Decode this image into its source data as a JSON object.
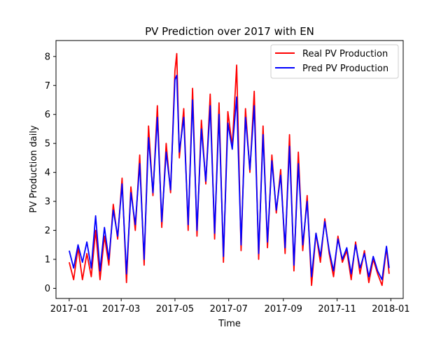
{
  "chart_data": {
    "type": "line",
    "title": "PV Prediction over 2017 with EN",
    "xlabel": "Time",
    "ylabel": "PV Production daily",
    "x_ticks": [
      "2017-01",
      "2017-03",
      "2017-05",
      "2017-07",
      "2017-09",
      "2017-11",
      "2018-01"
    ],
    "x_tick_days": [
      0,
      59,
      120,
      181,
      243,
      304,
      365
    ],
    "y_ticks": [
      0,
      1,
      2,
      3,
      4,
      5,
      6,
      7,
      8
    ],
    "xlim": [
      "2016-12-17",
      "2018-01-15"
    ],
    "ylim": [
      -0.35,
      8.55
    ],
    "legend_position": "upper right",
    "grid": false,
    "series": [
      {
        "name": "Real PV Production",
        "color": "#ff0000",
        "x": [
          "2017-01-01",
          "2017-01-06",
          "2017-01-11",
          "2017-01-16",
          "2017-01-21",
          "2017-01-26",
          "2017-01-31",
          "2017-02-05",
          "2017-02-10",
          "2017-02-15",
          "2017-02-20",
          "2017-02-25",
          "2017-03-02",
          "2017-03-07",
          "2017-03-12",
          "2017-03-17",
          "2017-03-22",
          "2017-03-27",
          "2017-04-01",
          "2017-04-06",
          "2017-04-11",
          "2017-04-16",
          "2017-04-21",
          "2017-04-26",
          "2017-05-01",
          "2017-05-03",
          "2017-05-06",
          "2017-05-11",
          "2017-05-16",
          "2017-05-21",
          "2017-05-26",
          "2017-05-31",
          "2017-06-05",
          "2017-06-10",
          "2017-06-15",
          "2017-06-20",
          "2017-06-25",
          "2017-06-30",
          "2017-07-05",
          "2017-07-10",
          "2017-07-15",
          "2017-07-20",
          "2017-07-25",
          "2017-07-30",
          "2017-08-04",
          "2017-08-09",
          "2017-08-14",
          "2017-08-19",
          "2017-08-24",
          "2017-08-29",
          "2017-09-03",
          "2017-09-08",
          "2017-09-13",
          "2017-09-18",
          "2017-09-23",
          "2017-09-28",
          "2017-10-03",
          "2017-10-08",
          "2017-10-13",
          "2017-10-18",
          "2017-10-23",
          "2017-10-28",
          "2017-11-02",
          "2017-11-07",
          "2017-11-12",
          "2017-11-17",
          "2017-11-22",
          "2017-11-27",
          "2017-12-02",
          "2017-12-07",
          "2017-12-12",
          "2017-12-17",
          "2017-12-22",
          "2017-12-27",
          "2017-12-30"
        ],
        "values": [
          0.9,
          0.3,
          1.4,
          0.3,
          1.2,
          0.4,
          2.0,
          0.3,
          1.8,
          0.8,
          2.9,
          1.7,
          3.8,
          0.2,
          3.5,
          2.0,
          4.6,
          0.8,
          5.6,
          3.2,
          6.3,
          2.1,
          5.0,
          3.3,
          7.5,
          8.1,
          4.5,
          6.2,
          2.0,
          6.9,
          1.8,
          5.8,
          3.6,
          6.7,
          1.7,
          6.4,
          0.9,
          6.1,
          4.9,
          7.7,
          1.3,
          6.2,
          4.0,
          6.8,
          1.0,
          5.6,
          1.4,
          4.6,
          2.6,
          4.1,
          1.2,
          5.3,
          0.6,
          4.7,
          1.3,
          3.2,
          0.1,
          1.9,
          0.9,
          2.4,
          1.2,
          0.4,
          1.8,
          0.9,
          1.3,
          0.3,
          1.6,
          0.5,
          1.3,
          0.2,
          1.0,
          0.5,
          0.1,
          1.4,
          0.5
        ]
      },
      {
        "name": "Pred PV Production",
        "color": "#0000ff",
        "x": [
          "2017-01-01",
          "2017-01-06",
          "2017-01-11",
          "2017-01-16",
          "2017-01-21",
          "2017-01-26",
          "2017-01-31",
          "2017-02-05",
          "2017-02-10",
          "2017-02-15",
          "2017-02-20",
          "2017-02-25",
          "2017-03-02",
          "2017-03-07",
          "2017-03-12",
          "2017-03-17",
          "2017-03-22",
          "2017-03-27",
          "2017-04-01",
          "2017-04-06",
          "2017-04-11",
          "2017-04-16",
          "2017-04-21",
          "2017-04-26",
          "2017-05-01",
          "2017-05-03",
          "2017-05-06",
          "2017-05-11",
          "2017-05-16",
          "2017-05-21",
          "2017-05-26",
          "2017-05-31",
          "2017-06-05",
          "2017-06-10",
          "2017-06-15",
          "2017-06-20",
          "2017-06-25",
          "2017-06-30",
          "2017-07-05",
          "2017-07-10",
          "2017-07-15",
          "2017-07-20",
          "2017-07-25",
          "2017-07-30",
          "2017-08-04",
          "2017-08-09",
          "2017-08-14",
          "2017-08-19",
          "2017-08-24",
          "2017-08-29",
          "2017-09-03",
          "2017-09-08",
          "2017-09-13",
          "2017-09-18",
          "2017-09-23",
          "2017-09-28",
          "2017-10-03",
          "2017-10-08",
          "2017-10-13",
          "2017-10-18",
          "2017-10-23",
          "2017-10-28",
          "2017-11-02",
          "2017-11-07",
          "2017-11-12",
          "2017-11-17",
          "2017-11-22",
          "2017-11-27",
          "2017-12-02",
          "2017-12-07",
          "2017-12-12",
          "2017-12-17",
          "2017-12-22",
          "2017-12-27",
          "2017-12-30"
        ],
        "values": [
          1.3,
          0.7,
          1.5,
          0.9,
          1.6,
          0.7,
          2.5,
          0.6,
          2.1,
          1.0,
          2.7,
          1.8,
          3.6,
          0.5,
          3.3,
          2.2,
          4.3,
          1.0,
          5.2,
          3.3,
          5.9,
          2.3,
          4.7,
          3.4,
          7.2,
          7.35,
          4.7,
          5.9,
          2.2,
          6.5,
          2.0,
          5.5,
          3.7,
          6.3,
          1.9,
          6.0,
          1.1,
          5.7,
          4.8,
          6.6,
          1.5,
          5.9,
          4.1,
          6.3,
          1.2,
          5.3,
          1.6,
          4.4,
          2.7,
          3.9,
          1.4,
          4.9,
          0.8,
          4.3,
          1.5,
          3.0,
          0.4,
          1.9,
          1.1,
          2.3,
          1.3,
          0.6,
          1.7,
          1.0,
          1.4,
          0.5,
          1.5,
          0.7,
          1.2,
          0.4,
          1.1,
          0.6,
          0.3,
          1.45,
          0.7
        ]
      }
    ]
  }
}
